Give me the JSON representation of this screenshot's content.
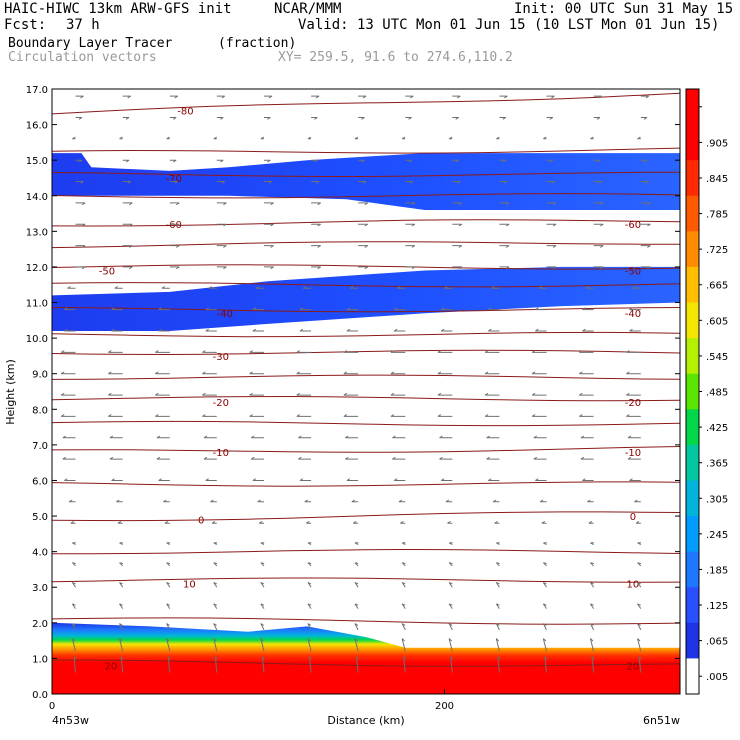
{
  "header": {
    "model": "HAIC-HIWC 13km ARW-GFS init",
    "org": "NCAR/MMM",
    "init": "Init: 00 UTC Sun 31 May 15",
    "fcst_label": "Fcst:",
    "fcst_value": "37 h",
    "valid": "Valid: 13 UTC Mon 01 Jun 15 (10 LST Mon 01 Jun 15)",
    "field": "Boundary Layer Tracer",
    "units": "(fraction)",
    "overlay": "Circulation vectors",
    "xy": "XY= 259.5, 91.6 to 274.6,110.2"
  },
  "chart_data": {
    "type": "heatmap",
    "title": "Boundary Layer Tracer",
    "xlabel": "Distance (km)",
    "ylabel": "Height (km)",
    "xlim": [
      0,
      320
    ],
    "ylim": [
      0,
      17
    ],
    "x_ticks": [
      {
        "value": 0,
        "label": "0"
      },
      {
        "value": 200,
        "label": "200"
      }
    ],
    "x_end_labels": {
      "left": "4n53w",
      "right": "6n51w"
    },
    "y_ticks": [
      {
        "value": 0,
        "label": "0.0"
      },
      {
        "value": 1,
        "label": "1.0"
      },
      {
        "value": 2,
        "label": "2.0"
      },
      {
        "value": 3,
        "label": "3.0"
      },
      {
        "value": 4,
        "label": "4.0"
      },
      {
        "value": 5,
        "label": "5.0"
      },
      {
        "value": 6,
        "label": "6.0"
      },
      {
        "value": 7,
        "label": "7.0"
      },
      {
        "value": 8,
        "label": "8.0"
      },
      {
        "value": 9,
        "label": "9.0"
      },
      {
        "value": 10,
        "label": "10.0"
      },
      {
        "value": 11,
        "label": "11.0"
      },
      {
        "value": 12,
        "label": "12.0"
      },
      {
        "value": 13,
        "label": "13.0"
      },
      {
        "value": 14,
        "label": "14.0"
      },
      {
        "value": 15,
        "label": "15.0"
      },
      {
        "value": 16,
        "label": "16.0"
      },
      {
        "value": 17,
        "label": "17.0"
      }
    ],
    "colorbar": {
      "labels": [
        "",
        ".905",
        ".845",
        ".785",
        ".725",
        ".665",
        ".605",
        ".545",
        ".485",
        ".425",
        ".365",
        ".305",
        ".245",
        ".185",
        ".125",
        ".065",
        ".005"
      ],
      "colors": [
        "#ff0000",
        "#ff0000",
        "#ff2a00",
        "#ff5a00",
        "#ff8c00",
        "#ffbe00",
        "#f5e600",
        "#b4f000",
        "#5ae600",
        "#00d84a",
        "#00c8a0",
        "#00b4dc",
        "#009cff",
        "#1e78ff",
        "#2850ff",
        "#1e32e6",
        "#ffffff"
      ]
    },
    "tracer_regions": [
      {
        "name": "upper cloud layer",
        "value": 0.035,
        "top": [
          [
            0,
            15.2
          ],
          [
            15,
            15.2
          ],
          [
            20,
            14.8
          ],
          [
            60,
            14.7
          ],
          [
            90,
            14.8
          ],
          [
            130,
            15.0
          ],
          [
            190,
            15.2
          ],
          [
            320,
            15.2
          ]
        ],
        "bottom": [
          [
            0,
            14.0
          ],
          [
            90,
            14.0
          ],
          [
            150,
            13.9
          ],
          [
            190,
            13.6
          ],
          [
            320,
            13.6
          ]
        ]
      },
      {
        "name": "middle cloud layer",
        "value": 0.035,
        "top": [
          [
            0,
            11.2
          ],
          [
            60,
            11.3
          ],
          [
            110,
            11.6
          ],
          [
            190,
            11.9
          ],
          [
            260,
            12.0
          ],
          [
            320,
            12.0
          ]
        ],
        "bottom": [
          [
            0,
            10.2
          ],
          [
            60,
            10.2
          ],
          [
            110,
            10.4
          ],
          [
            190,
            10.7
          ],
          [
            260,
            10.9
          ],
          [
            320,
            11.0
          ]
        ]
      },
      {
        "name": "boundary layer",
        "value": 0.95,
        "top": [
          [
            0,
            2.0
          ],
          [
            50,
            1.9
          ],
          [
            100,
            1.75
          ],
          [
            130,
            1.9
          ],
          [
            160,
            1.6
          ],
          [
            180,
            1.3
          ],
          [
            250,
            1.3
          ],
          [
            320,
            1.3
          ]
        ],
        "bottom": [
          [
            0,
            0
          ],
          [
            320,
            0
          ]
        ]
      }
    ],
    "contours": [
      {
        "level": "-80",
        "y0": 16.3,
        "y1": 16.9
      },
      {
        "level": "",
        "y0": 15.2,
        "y1": 15.3
      },
      {
        "level": "-70",
        "y0": 14.6,
        "y1": 14.6
      },
      {
        "level": "",
        "y0": 14.0,
        "y1": 14.0
      },
      {
        "level": "-60",
        "y0": 13.2,
        "y1": 13.3
      },
      {
        "level": "",
        "y0": 12.6,
        "y1": 12.7
      },
      {
        "level": "-50",
        "y0": 12.0,
        "y1": 12.0
      },
      {
        "level": "",
        "y0": 11.5,
        "y1": 11.5
      },
      {
        "level": "-40",
        "y0": 10.8,
        "y1": 10.8
      },
      {
        "level": "",
        "y0": 10.1,
        "y1": 10.1
      },
      {
        "level": "-30",
        "y0": 9.6,
        "y1": 9.6
      },
      {
        "level": "",
        "y0": 8.9,
        "y1": 8.9
      },
      {
        "level": "-20",
        "y0": 8.3,
        "y1": 8.3
      },
      {
        "level": "",
        "y0": 7.6,
        "y1": 7.6
      },
      {
        "level": "-10",
        "y0": 6.8,
        "y1": 6.9
      },
      {
        "level": "",
        "y0": 5.9,
        "y1": 5.9
      },
      {
        "level": "0",
        "y0": 4.9,
        "y1": 5.1
      },
      {
        "level": "",
        "y0": 4.0,
        "y1": 4.0
      },
      {
        "level": "10",
        "y0": 3.2,
        "y1": 3.2
      },
      {
        "level": "",
        "y0": 2.1,
        "y1": 2.0
      },
      {
        "level": "20",
        "y0": 0.9,
        "y1": 0.8
      }
    ],
    "contour_labels": [
      {
        "text": "-80",
        "x": 68,
        "y": 16.4
      },
      {
        "text": "-70",
        "x": 62,
        "y": 14.5
      },
      {
        "text": "-60",
        "x": 62,
        "y": 13.2
      },
      {
        "text": "-60",
        "x": 296,
        "y": 13.2
      },
      {
        "text": "-50",
        "x": 28,
        "y": 11.9
      },
      {
        "text": "-50",
        "x": 296,
        "y": 11.9
      },
      {
        "text": "-40",
        "x": 88,
        "y": 10.7
      },
      {
        "text": "-40",
        "x": 296,
        "y": 10.7
      },
      {
        "text": "-30",
        "x": 86,
        "y": 9.5
      },
      {
        "text": "-20",
        "x": 86,
        "y": 8.2
      },
      {
        "text": "-20",
        "x": 296,
        "y": 8.2
      },
      {
        "text": "-10",
        "x": 86,
        "y": 6.8
      },
      {
        "text": "-10",
        "x": 296,
        "y": 6.8
      },
      {
        "text": "0",
        "x": 76,
        "y": 4.9
      },
      {
        "text": "0",
        "x": 296,
        "y": 5.0
      },
      {
        "text": "10",
        "x": 70,
        "y": 3.1
      },
      {
        "text": "10",
        "x": 296,
        "y": 3.1
      },
      {
        "text": "20",
        "x": 30,
        "y": 0.8
      },
      {
        "text": "20",
        "x": 296,
        "y": 0.8
      }
    ],
    "vectors": {
      "x_positions": [
        12,
        36,
        60,
        84,
        108,
        132,
        156,
        180,
        204,
        228,
        252,
        276,
        300
      ],
      "levels": [
        {
          "y": 16.8,
          "u": 0.5,
          "w": 0
        },
        {
          "y": 16.2,
          "u": 0.4,
          "w": 0
        },
        {
          "y": 15.6,
          "u": -0.2,
          "w": 0
        },
        {
          "y": 15.0,
          "u": 0.4,
          "w": 0
        },
        {
          "y": 14.4,
          "u": 0.5,
          "w": 0
        },
        {
          "y": 13.8,
          "u": 0.6,
          "w": 0
        },
        {
          "y": 13.2,
          "u": 0.6,
          "w": 0
        },
        {
          "y": 12.6,
          "u": 0.6,
          "w": 0
        },
        {
          "y": 12.0,
          "u": 0.6,
          "w": 0
        },
        {
          "y": 11.4,
          "u": -0.5,
          "w": 0
        },
        {
          "y": 10.8,
          "u": -0.7,
          "w": 0
        },
        {
          "y": 10.2,
          "u": -0.7,
          "w": 0
        },
        {
          "y": 9.6,
          "u": -0.9,
          "w": 0
        },
        {
          "y": 9.0,
          "u": -0.9,
          "w": 0
        },
        {
          "y": 8.4,
          "u": -0.9,
          "w": 0
        },
        {
          "y": 7.8,
          "u": -0.9,
          "w": 0
        },
        {
          "y": 7.2,
          "u": -0.8,
          "w": 0
        },
        {
          "y": 6.6,
          "u": -0.8,
          "w": 0
        },
        {
          "y": 6.0,
          "u": -0.7,
          "w": 0
        },
        {
          "y": 5.4,
          "u": -0.4,
          "w": 0
        },
        {
          "y": 4.8,
          "u": -0.3,
          "w": 0
        },
        {
          "y": 4.2,
          "u": -0.2,
          "w": 0.1
        },
        {
          "y": 3.6,
          "u": -0.2,
          "w": 0.2
        },
        {
          "y": 3.0,
          "u": -0.2,
          "w": 0.3
        },
        {
          "y": 2.4,
          "u": -0.2,
          "w": 0.3
        },
        {
          "y": 1.8,
          "u": -0.2,
          "w": 0.4
        },
        {
          "y": 1.2,
          "u": -0.2,
          "w": 0.8
        },
        {
          "y": 0.6,
          "u": -0.1,
          "w": 1.0
        }
      ]
    },
    "grid": false,
    "legend": "colorbar right"
  }
}
